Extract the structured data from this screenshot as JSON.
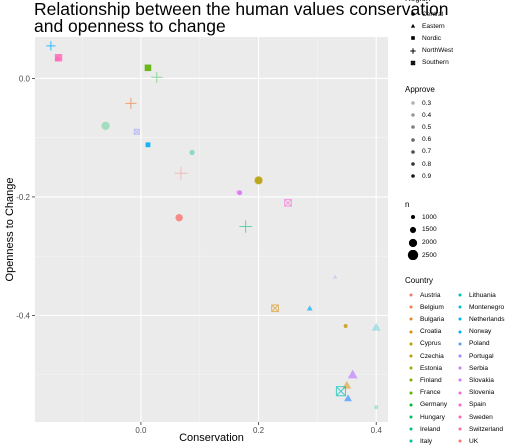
{
  "chart_data": {
    "type": "scatter",
    "title_lines": [
      "Relationship between the human values conservation",
      "and openness to change"
    ],
    "xlabel": "Conservation",
    "ylabel": "Openness to Change",
    "xlim": [
      -0.18,
      0.42
    ],
    "ylim": [
      -0.58,
      0.07
    ],
    "x_ticks": [
      {
        "v": 0.0,
        "label": "0.0"
      },
      {
        "v": 0.2,
        "label": "0.2"
      },
      {
        "v": 0.4,
        "label": "0.4"
      }
    ],
    "y_ticks": [
      {
        "v": 0.0,
        "label": "0.0"
      },
      {
        "v": -0.2,
        "label": "-0.2"
      },
      {
        "v": -0.4,
        "label": "-0.4"
      }
    ],
    "grid": true,
    "panel_background": "#ebebeb",
    "legend_region": {
      "title": "Region",
      "items": [
        {
          "label": "Central",
          "shape": "circle"
        },
        {
          "label": "Eastern",
          "shape": "triangle"
        },
        {
          "label": "Nordic",
          "shape": "square"
        },
        {
          "label": "NorthWest",
          "shape": "plus"
        },
        {
          "label": "Southern",
          "shape": "boxx"
        }
      ]
    },
    "legend_approve": {
      "title": "Approve",
      "items": [
        "0.3",
        "0.4",
        "0.5",
        "0.6",
        "0.7",
        "0.8",
        "0.9"
      ]
    },
    "legend_n": {
      "title": "n",
      "items": [
        "1000",
        "1500",
        "2000",
        "2500"
      ]
    },
    "legend_country": {
      "title": "Country",
      "col1": [
        {
          "label": "Austria",
          "color": "#F8766D"
        },
        {
          "label": "Belgium",
          "color": "#F07E3E"
        },
        {
          "label": "Bulgaria",
          "color": "#E7861B"
        },
        {
          "label": "Croatia",
          "color": "#DB8E00"
        },
        {
          "label": "Cyprus",
          "color": "#CB9600"
        },
        {
          "label": "Czechia",
          "color": "#B79F00"
        },
        {
          "label": "Estonia",
          "color": "#9FA600"
        },
        {
          "label": "Finland",
          "color": "#81AD00"
        },
        {
          "label": "France",
          "color": "#5BB300"
        },
        {
          "label": "Germany",
          "color": "#00B81F"
        },
        {
          "label": "Hungary",
          "color": "#00BC55"
        },
        {
          "label": "Ireland",
          "color": "#00BF7D"
        },
        {
          "label": "Italy",
          "color": "#00C19F"
        }
      ],
      "col2": [
        {
          "label": "Lithuania",
          "color": "#00C0BA"
        },
        {
          "label": "Montenegro",
          "color": "#00BDD4"
        },
        {
          "label": "Netherlands",
          "color": "#00B8E7"
        },
        {
          "label": "Norway",
          "color": "#00ADFA"
        },
        {
          "label": "Poland",
          "color": "#529EFF"
        },
        {
          "label": "Portugal",
          "color": "#9590FF"
        },
        {
          "label": "Serbia",
          "color": "#BE80FF"
        },
        {
          "label": "Slovakia",
          "color": "#D973FC"
        },
        {
          "label": "Slovenia",
          "color": "#EE67EB"
        },
        {
          "label": "Spain",
          "color": "#FA62D5"
        },
        {
          "label": "Sweden",
          "color": "#FF64B6"
        },
        {
          "label": "Switzerland",
          "color": "#FF6C91"
        },
        {
          "label": "UK",
          "color": "#F8766D"
        }
      ]
    },
    "points": [
      {
        "x": -0.153,
        "y": 0.055,
        "shape": "plus",
        "color": "#00ADFA",
        "alpha": 0.8,
        "n": 1500
      },
      {
        "x": -0.14,
        "y": 0.035,
        "shape": "square",
        "color": "#FF64B6",
        "alpha": 0.8,
        "n": 1800
      },
      {
        "x": -0.142,
        "y": 0.033,
        "shape": "circle",
        "color": "#FF64B6",
        "alpha": 0.7,
        "n": 1200
      },
      {
        "x": 0.012,
        "y": 0.018,
        "shape": "square",
        "color": "#5BB300",
        "alpha": 0.9,
        "n": 1600
      },
      {
        "x": 0.027,
        "y": 0.002,
        "shape": "plus",
        "color": "#00B81F",
        "alpha": 0.4,
        "n": 1800
      },
      {
        "x": -0.017,
        "y": -0.042,
        "shape": "plus",
        "color": "#F07E3E",
        "alpha": 0.7,
        "n": 1800
      },
      {
        "x": -0.06,
        "y": -0.08,
        "shape": "circle",
        "color": "#00BC55",
        "alpha": 0.3,
        "n": 2000
      },
      {
        "x": -0.007,
        "y": -0.09,
        "shape": "boxx",
        "color": "#9590FF",
        "alpha": 0.5,
        "n": 1300
      },
      {
        "x": 0.012,
        "y": -0.112,
        "shape": "square",
        "color": "#00ADFA",
        "alpha": 0.9,
        "n": 1200
      },
      {
        "x": 0.087,
        "y": -0.125,
        "shape": "circle",
        "color": "#00C19F",
        "alpha": 0.4,
        "n": 1300
      },
      {
        "x": 0.068,
        "y": -0.16,
        "shape": "plus",
        "color": "#F8766D",
        "alpha": 0.4,
        "n": 2100
      },
      {
        "x": 0.2,
        "y": -0.172,
        "shape": "circle",
        "color": "#9FA600",
        "alpha": 0.8,
        "n": 1800
      },
      {
        "x": 0.2,
        "y": -0.172,
        "shape": "circle",
        "color": "#CB9600",
        "alpha": 0.4,
        "n": 2100
      },
      {
        "x": 0.168,
        "y": -0.193,
        "shape": "circle",
        "color": "#D973FC",
        "alpha": 0.9,
        "n": 1200
      },
      {
        "x": 0.165,
        "y": -0.192,
        "shape": "circle",
        "color": "#EE67EB",
        "alpha": 0.3,
        "n": 1000
      },
      {
        "x": 0.25,
        "y": -0.21,
        "shape": "boxx",
        "color": "#FA62D5",
        "alpha": 0.6,
        "n": 1700
      },
      {
        "x": 0.065,
        "y": -0.235,
        "shape": "circle",
        "color": "#F8766D",
        "alpha": 0.8,
        "n": 1800
      },
      {
        "x": 0.178,
        "y": -0.25,
        "shape": "plus",
        "color": "#00BF7D",
        "alpha": 0.6,
        "n": 2000
      },
      {
        "x": 0.33,
        "y": -0.335,
        "shape": "triangle",
        "color": "#BE80FF",
        "alpha": 0.3,
        "n": 1000
      },
      {
        "x": 0.228,
        "y": -0.388,
        "shape": "boxx",
        "color": "#DB8E00",
        "alpha": 0.6,
        "n": 1700
      },
      {
        "x": 0.287,
        "y": -0.388,
        "shape": "triangle",
        "color": "#00ADFA",
        "alpha": 0.7,
        "n": 1200
      },
      {
        "x": 0.348,
        "y": -0.418,
        "shape": "circle",
        "color": "#CB9600",
        "alpha": 0.8,
        "n": 1000
      },
      {
        "x": 0.4,
        "y": -0.42,
        "shape": "triangle",
        "color": "#00BDD4",
        "alpha": 0.3,
        "n": 1800
      },
      {
        "x": 0.36,
        "y": -0.5,
        "shape": "triangle",
        "color": "#BE80FF",
        "alpha": 0.7,
        "n": 2000
      },
      {
        "x": 0.35,
        "y": -0.518,
        "shape": "triangle",
        "color": "#DB8E00",
        "alpha": 0.5,
        "n": 1800
      },
      {
        "x": 0.34,
        "y": -0.528,
        "shape": "boxx",
        "color": "#00C0BA",
        "alpha": 0.7,
        "n": 2300
      },
      {
        "x": 0.352,
        "y": -0.54,
        "shape": "triangle",
        "color": "#529EFF",
        "alpha": 0.8,
        "n": 1600
      },
      {
        "x": 0.4,
        "y": -0.555,
        "shape": "circle",
        "color": "#00C19F",
        "alpha": 0.3,
        "n": 1000
      }
    ]
  }
}
